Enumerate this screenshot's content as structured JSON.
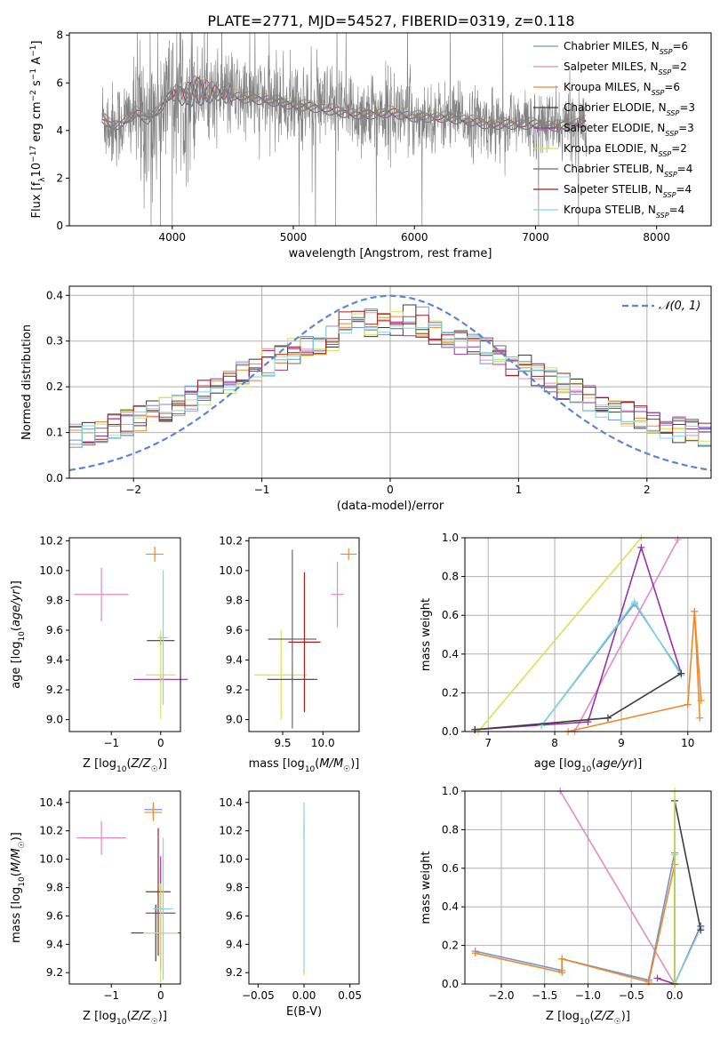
{
  "figure_title": "PLATE=2771, MJD=54527, FIBERID=0319, z=0.118",
  "colors": {
    "grid": "#b0b0b0",
    "normal_curve": "#5b86d6",
    "models": [
      "#6f93d8",
      "#e889c2",
      "#ee8a2a",
      "#3d3d3d",
      "#9b30a8",
      "#d4e550",
      "#6b6b6b",
      "#a61e1e",
      "#7fd6df"
    ],
    "observed_spectrum": "#808080"
  },
  "legend_spectrum": [
    {
      "label": "Chabrier MILES, N",
      "sub": "SSP",
      "suffix": "=6"
    },
    {
      "label": "Salpeter MILES, N",
      "sub": "SSP",
      "suffix": "=2"
    },
    {
      "label": "Kroupa MILES, N",
      "sub": "SSP",
      "suffix": "=6"
    },
    {
      "label": "Chabrier ELODIE, N",
      "sub": "SSP",
      "suffix": "=3"
    },
    {
      "label": "Salpeter ELODIE, N",
      "sub": "SSP",
      "suffix": "=3"
    },
    {
      "label": "Kroupa ELODIE, N",
      "sub": "SSP",
      "suffix": "=2"
    },
    {
      "label": "Chabrier STELIB, N",
      "sub": "SSP",
      "suffix": "=4"
    },
    {
      "label": "Salpeter STELIB, N",
      "sub": "SSP",
      "suffix": "=4"
    },
    {
      "label": "Kroupa STELIB, N",
      "sub": "SSP",
      "suffix": "=4"
    }
  ],
  "legend_hist": "𝒩(0, 1)",
  "chart_data": [
    {
      "id": "spectrum",
      "type": "line",
      "xlabel": "wavelength [Angstrom, rest frame]",
      "ylabel": "Flux [f_λ 10^-17 erg cm^-2 s^-1 A^-1]",
      "xlim": [
        3150,
        8450
      ],
      "ylim": [
        0,
        8.1
      ],
      "xticks": [
        4000,
        5000,
        6000,
        7000,
        8000
      ],
      "yticks": [
        0,
        2,
        4,
        6,
        8
      ],
      "grid": false,
      "legend_position": "top-right",
      "observed_anchor_wavelength": [
        3420,
        3500,
        3600,
        3700,
        3800,
        3900,
        4000,
        4100,
        4200,
        4400,
        4600,
        4800,
        5000,
        5200,
        5400,
        5600,
        5800,
        6000,
        6200,
        6400,
        6600,
        6800,
        7000,
        7200,
        7400
      ],
      "observed_anchor_flux": [
        4.6,
        4.2,
        4.4,
        4.8,
        4.5,
        5.0,
        5.6,
        5.5,
        5.7,
        5.6,
        5.4,
        5.3,
        5.1,
        5.0,
        4.8,
        4.7,
        4.8,
        4.6,
        4.6,
        4.5,
        4.3,
        4.3,
        4.3,
        4.2,
        4.4
      ]
    },
    {
      "id": "residuals",
      "type": "line",
      "xlabel": "(data-model)/error",
      "ylabel": "Normed distribution",
      "xlim": [
        -2.5,
        2.5
      ],
      "ylim": [
        0,
        0.42
      ],
      "xticks": [
        -2,
        -1,
        0,
        1,
        2
      ],
      "yticks": [
        0.0,
        0.1,
        0.2,
        0.3,
        0.4
      ],
      "grid": true,
      "legend_position": "top-right",
      "bins": 50,
      "bin_width": 0.1,
      "series": [
        {
          "name": "𝒩(0, 1)",
          "style": "dashed",
          "function": "gaussian",
          "mean": 0,
          "sigma": 1
        }
      ]
    },
    {
      "id": "age_vs_Z",
      "type": "scatter",
      "xlabel": "Z [log10(Z/Z☉)]",
      "ylabel": "age [log10(age/yr)]",
      "xlim": [
        -1.85,
        0.4
      ],
      "ylim": [
        8.92,
        10.22
      ],
      "xticks": [
        -1,
        0
      ],
      "yticks": [
        9.0,
        9.2,
        9.4,
        9.6,
        9.8,
        10.0,
        10.2
      ],
      "points": [
        {
          "model": 1,
          "x": -1.2,
          "y": 9.84,
          "xerr": 0.55,
          "yerr": 0.18
        },
        {
          "model": 2,
          "x": -0.12,
          "y": 10.11,
          "xerr": 0.18,
          "yerr": 0.05
        },
        {
          "model": 3,
          "x": 0.0,
          "y": 9.53,
          "xerr": 0.28,
          "yerr": 0.03
        },
        {
          "model": 4,
          "x": 0.0,
          "y": 9.27,
          "xerr": 0.55,
          "yerr": 0.02
        },
        {
          "model": 5,
          "x": 0.0,
          "y": 9.3,
          "xerr": 0.3,
          "yerr": 0.3
        },
        {
          "model": 8,
          "x": 0.05,
          "y": 9.55,
          "xerr": 0.1,
          "yerr": 0.45
        }
      ]
    },
    {
      "id": "age_vs_mass",
      "type": "scatter",
      "xlabel": "mass [log10(M/M☉)]",
      "ylabel": "",
      "xlim": [
        9.08,
        10.45
      ],
      "ylim": [
        8.92,
        10.22
      ],
      "xticks": [
        9.5,
        10.0
      ],
      "yticks": [
        9.0,
        9.2,
        9.4,
        9.6,
        9.8,
        10.0,
        10.2
      ],
      "points": [
        {
          "model": 5,
          "x": 9.48,
          "y": 9.3,
          "xerr": 0.33,
          "yerr": 0.3
        },
        {
          "model": 3,
          "x": 9.62,
          "y": 9.27,
          "xerr": 0.31,
          "yerr": 0.02
        },
        {
          "model": 6,
          "x": 9.62,
          "y": 9.54,
          "xerr": 0.3,
          "yerr": 0.6
        },
        {
          "model": 7,
          "x": 9.77,
          "y": 9.52,
          "xerr": 0.2,
          "yerr": 0.47
        },
        {
          "model": 1,
          "x": 10.18,
          "y": 9.84,
          "xerr": 0.08,
          "yerr": 0.22
        },
        {
          "model": 2,
          "x": 10.32,
          "y": 10.11,
          "xerr": 0.1,
          "yerr": 0.04
        }
      ]
    },
    {
      "id": "weight_vs_age",
      "type": "line",
      "xlabel": "age [log10(age/yr)]",
      "ylabel": "mass weight",
      "xlim": [
        6.65,
        10.35
      ],
      "ylim": [
        0,
        1.0
      ],
      "xticks": [
        7,
        8,
        9,
        10
      ],
      "yticks": [
        0.0,
        0.2,
        0.4,
        0.6,
        0.8,
        1.0
      ],
      "grid": true,
      "series": [
        {
          "model": 5,
          "x": [
            6.85,
            9.3
          ],
          "y": [
            0.0,
            1.0
          ]
        },
        {
          "model": 1,
          "x": [
            8.3,
            9.85
          ],
          "y": [
            0.0,
            0.99
          ]
        },
        {
          "model": 4,
          "x": [
            6.8,
            8.5,
            9.3,
            9.9
          ],
          "y": [
            0.01,
            0.05,
            0.95,
            0.3
          ]
        },
        {
          "model": 0,
          "x": [
            7.8,
            9.2,
            9.9
          ],
          "y": [
            0.03,
            0.66,
            0.3
          ]
        },
        {
          "model": 8,
          "x": [
            7.8,
            9.2,
            9.9
          ],
          "y": [
            0.03,
            0.67,
            0.29
          ]
        },
        {
          "model": 3,
          "x": [
            6.8,
            8.8,
            9.9
          ],
          "y": [
            0.01,
            0.07,
            0.3
          ]
        },
        {
          "model": 2,
          "x": [
            8.2,
            10.0,
            10.1,
            10.18
          ],
          "y": [
            0.0,
            0.14,
            0.62,
            0.07
          ]
        },
        {
          "model": 2,
          "x": [
            10.1,
            10.2
          ],
          "y": [
            0.62,
            0.16
          ]
        }
      ]
    },
    {
      "id": "mass_vs_Z",
      "type": "scatter",
      "xlabel": "Z [log10(Z/Z☉)]",
      "ylabel": "mass [log10(M/M☉)]",
      "xlim": [
        -1.85,
        0.4
      ],
      "ylim": [
        9.12,
        10.48
      ],
      "xticks": [
        -1,
        0
      ],
      "yticks": [
        9.2,
        9.4,
        9.6,
        9.8,
        10.0,
        10.2,
        10.4
      ],
      "points": [
        {
          "model": 1,
          "x": -1.2,
          "y": 10.15,
          "xerr": 0.5,
          "yerr": 0.12
        },
        {
          "model": 0,
          "x": -0.15,
          "y": 10.35,
          "xerr": 0.18,
          "yerr": 0.05
        },
        {
          "model": 2,
          "x": -0.15,
          "y": 10.33,
          "xerr": 0.18,
          "yerr": 0.06
        },
        {
          "model": 7,
          "x": -0.05,
          "y": 9.77,
          "xerr": 0.25,
          "yerr": 0.45
        },
        {
          "model": 4,
          "x": 0.0,
          "y": 9.62,
          "xerr": 0.3,
          "yerr": 0.4
        },
        {
          "model": 3,
          "x": -0.1,
          "y": 9.48,
          "xerr": 0.5,
          "yerr": 0.2
        },
        {
          "model": 5,
          "x": 0.0,
          "y": 9.48,
          "xerr": 0.35,
          "yerr": 0.35
        },
        {
          "model": 8,
          "x": 0.05,
          "y": 9.65,
          "xerr": 0.2,
          "yerr": 0.5
        }
      ]
    },
    {
      "id": "mass_vs_ebv",
      "type": "scatter",
      "xlabel": "E(B-V)",
      "ylabel": "",
      "xlim": [
        -0.06,
        0.06
      ],
      "ylim": [
        9.12,
        10.48
      ],
      "xticks": [
        -0.05,
        0.0,
        0.05
      ],
      "yticks": [
        9.2,
        9.4,
        9.6,
        9.8,
        10.0,
        10.2,
        10.4
      ],
      "points": [
        {
          "model": 5,
          "x": 0.0,
          "y": 9.2,
          "yerr": 0.02
        },
        {
          "model": 2,
          "x": 0.0,
          "y": 10.2,
          "yerr": 0.05
        },
        {
          "model": 8,
          "x": 0.0,
          "y": 9.8,
          "yerr": 0.6
        }
      ]
    },
    {
      "id": "weight_vs_Z",
      "type": "line",
      "xlabel": "Z [log10(Z/Z☉)]",
      "ylabel": "mass weight",
      "xlim": [
        -2.42,
        0.42
      ],
      "ylim": [
        0,
        1.0
      ],
      "xticks": [
        -2.0,
        -1.5,
        -1.0,
        -0.5,
        0.0
      ],
      "yticks": [
        0.0,
        0.2,
        0.4,
        0.6,
        0.8,
        1.0
      ],
      "grid": true,
      "series": [
        {
          "model": 1,
          "x": [
            -1.32,
            0.0
          ],
          "y": [
            1.0,
            0.0
          ]
        },
        {
          "model": 0,
          "x": [
            -2.3,
            -1.3,
            -1.3,
            -0.3,
            0.0,
            0.0
          ],
          "y": [
            0.17,
            0.07,
            0.13,
            0.02,
            0.68,
            0.0
          ]
        },
        {
          "model": 2,
          "x": [
            -2.3,
            -1.3,
            -1.3,
            -0.3,
            0.0,
            0.0
          ],
          "y": [
            0.16,
            0.06,
            0.13,
            0.01,
            0.62,
            0.0
          ]
        },
        {
          "model": 4,
          "x": [
            -0.2,
            0.0,
            0.3
          ],
          "y": [
            0.03,
            0.0,
            0.3
          ]
        },
        {
          "model": 8,
          "x": [
            0.0,
            0.0,
            0.3
          ],
          "y": [
            0.67,
            0.0,
            0.29
          ]
        },
        {
          "model": 3,
          "x": [
            0.0,
            0.0,
            0.3
          ],
          "y": [
            0.0,
            0.95,
            0.28
          ]
        },
        {
          "model": 5,
          "x": [
            0.0,
            0.0
          ],
          "y": [
            1.0,
            0.0
          ]
        }
      ]
    }
  ]
}
